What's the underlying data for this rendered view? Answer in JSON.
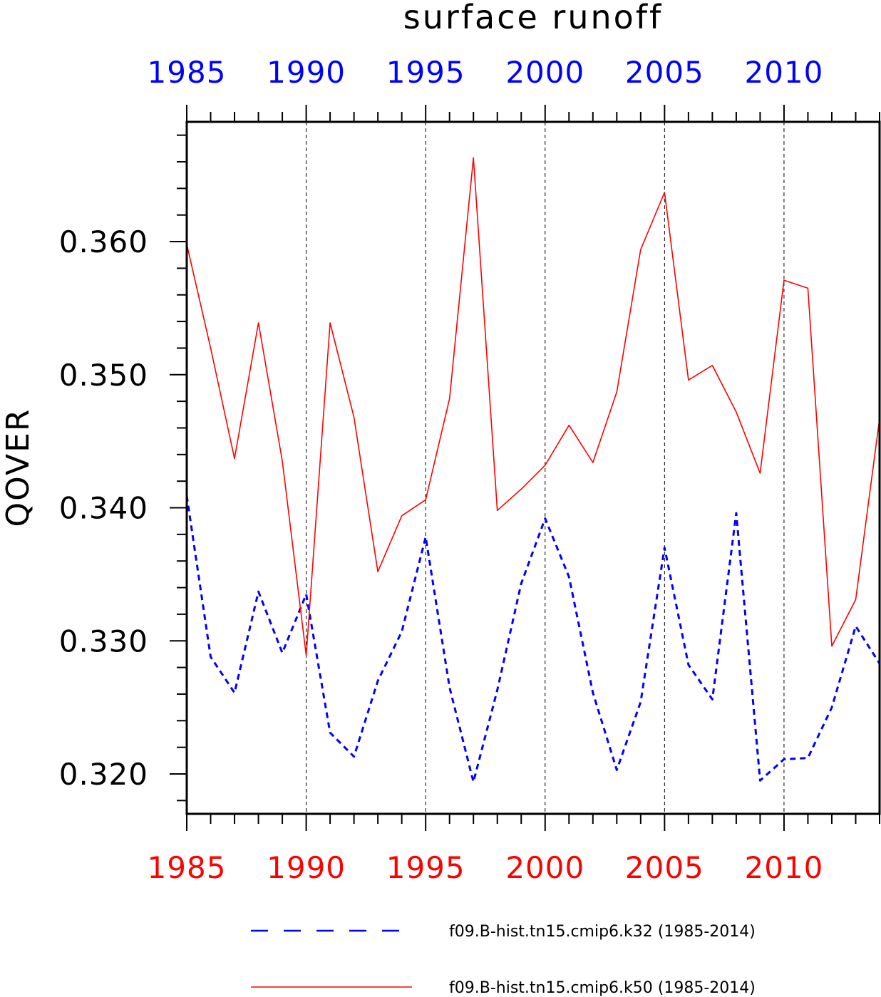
{
  "chart_data": {
    "type": "line",
    "title": "surface runoff",
    "ylabel": "QOVER",
    "xlabel": "",
    "xlim": [
      1985,
      2014
    ],
    "ylim": [
      0.317,
      0.369
    ],
    "x_ticks": [
      1985,
      1990,
      1995,
      2000,
      2005,
      2010
    ],
    "x_tick_labels_top": [
      "1985",
      "1990",
      "1995",
      "2000",
      "2005",
      "2010"
    ],
    "x_tick_labels_bottom": [
      "1985",
      "1990",
      "1995",
      "2000",
      "2005",
      "2010"
    ],
    "y_ticks": [
      0.32,
      0.33,
      0.34,
      0.35,
      0.36
    ],
    "y_tick_labels": [
      "0.320",
      "0.330",
      "0.340",
      "0.350",
      "0.360"
    ],
    "top_axis_color": "#0000ff",
    "bottom_axis_color": "#ff0000",
    "grid": "vertical dashed at major x ticks",
    "legend_position": "bottom",
    "x": [
      1985,
      1986,
      1987,
      1988,
      1989,
      1990,
      1991,
      1992,
      1993,
      1994,
      1995,
      1996,
      1997,
      1998,
      1999,
      2000,
      2001,
      2002,
      2003,
      2004,
      2005,
      2006,
      2007,
      2008,
      2009,
      2010,
      2011,
      2012,
      2013,
      2014
    ],
    "series": [
      {
        "name": "f09.B-hist.tn15.cmip6.k32 (1985-2014)",
        "color": "#0000ff",
        "style": "dashed",
        "values": [
          0.3409,
          0.3288,
          0.3261,
          0.3337,
          0.3291,
          0.3335,
          0.3231,
          0.3213,
          0.327,
          0.3307,
          0.3378,
          0.3265,
          0.3194,
          0.3263,
          0.3343,
          0.3392,
          0.3348,
          0.3261,
          0.3203,
          0.3254,
          0.337,
          0.3282,
          0.3256,
          0.3396,
          0.3195,
          0.3211,
          0.3212,
          0.325,
          0.3311,
          0.3283
        ]
      },
      {
        "name": "f09.B-hist.tn15.cmip6.k50 (1985-2014)",
        "color": "#ff0000",
        "style": "solid",
        "values": [
          0.3598,
          0.352,
          0.3437,
          0.3539,
          0.3435,
          0.3289,
          0.3539,
          0.3468,
          0.3352,
          0.3394,
          0.3406,
          0.3482,
          0.3663,
          0.3398,
          0.3414,
          0.3432,
          0.3462,
          0.3434,
          0.3487,
          0.3594,
          0.3637,
          0.3496,
          0.3507,
          0.3472,
          0.3426,
          0.3571,
          0.3565,
          0.3296,
          0.3331,
          0.3467
        ]
      }
    ]
  }
}
